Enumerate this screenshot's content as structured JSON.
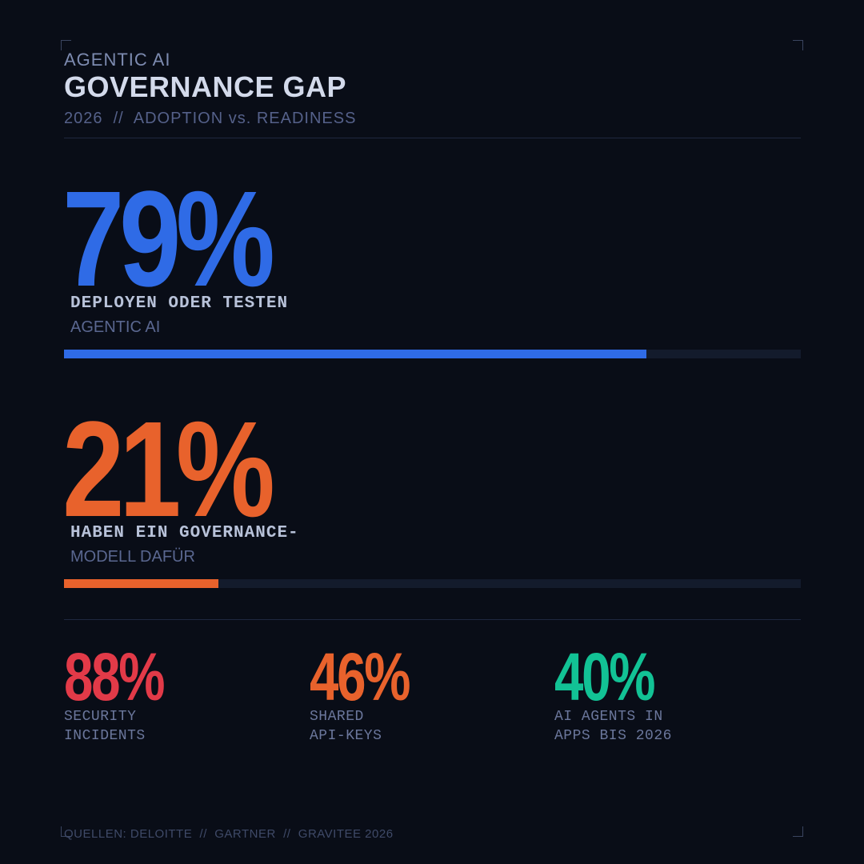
{
  "header": {
    "kicker": "AGENTIC AI",
    "title": "GOVERNANCE GAP",
    "subtitle": "2026  //  ADOPTION vs. READINESS"
  },
  "stats": [
    {
      "value": "79%",
      "percent": 79,
      "label_bold": "DEPLOYEN ODER TESTEN",
      "label_light": "AGENTIC AI",
      "color": "#2f6be6"
    },
    {
      "value": "21%",
      "percent": 21,
      "label_bold": "HABEN EIN GOVERNANCE-",
      "label_light": "MODELL DAFÜR",
      "color": "#e8622c"
    }
  ],
  "mini_stats": [
    {
      "value": "88%",
      "line1": "SECURITY",
      "line2": "INCIDENTS",
      "color": "#e23a48"
    },
    {
      "value": "46%",
      "line1": "SHARED",
      "line2": "API-KEYS",
      "color": "#e8622c"
    },
    {
      "value": "40%",
      "line1": "AI AGENTS IN",
      "line2": "APPS BIS 2026",
      "color": "#12c295"
    }
  ],
  "footer": "QUELLEN: DELOITTE  //  GARTNER  //  GRAVITEE 2026",
  "colors": {
    "background": "#090d17",
    "track": "#131b2c"
  }
}
